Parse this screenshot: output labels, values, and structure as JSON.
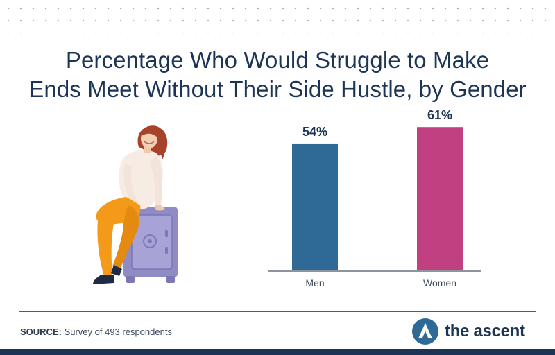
{
  "title_lines": [
    "Percentage Who Would Struggle to Make",
    "Ends Meet Without Their Side Hustle, by Gender"
  ],
  "chart_data": {
    "type": "bar",
    "categories": [
      "Men",
      "Women"
    ],
    "values": [
      54,
      61
    ],
    "value_labels": [
      "54%",
      "61%"
    ],
    "colors": [
      "#2f6a97",
      "#c04082"
    ],
    "ylim": [
      0,
      100
    ],
    "grid": false,
    "legend": "none"
  },
  "source": {
    "label": "SOURCE:",
    "text": " Survey of 493 respondents"
  },
  "logo": {
    "text": "the ascent",
    "icon": "ascent-logo-icon"
  },
  "colors": {
    "title": "#1c3556",
    "brand": "#1c3556"
  }
}
